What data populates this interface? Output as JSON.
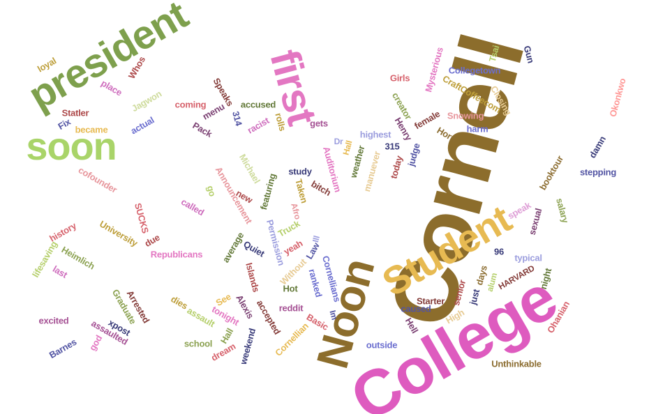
{
  "words": [
    {
      "text": "Cornell",
      "color": "#8c6d2c"
    },
    {
      "text": "College",
      "color": "#de5bbf"
    },
    {
      "text": "Noon",
      "color": "#8c6d2c"
    },
    {
      "text": "Student",
      "color": "#e7ba52"
    },
    {
      "text": "first",
      "color": "#e377c2"
    },
    {
      "text": "president",
      "color": "#7ea04d"
    },
    {
      "text": "soon",
      "color": "#a9d469"
    },
    {
      "text": "Collegetown",
      "color": "#6b6ecf"
    },
    {
      "text": "Girls",
      "color": "#d6616b"
    },
    {
      "text": "Mysterious",
      "color": "#e377c2"
    },
    {
      "text": "Tsai",
      "color": "#b5cf6b"
    },
    {
      "text": "Gun",
      "color": "#393b79"
    },
    {
      "text": "CraftCoffeecom",
      "color": "#bd9e39"
    },
    {
      "text": "Closing",
      "color": "#e7cb94"
    },
    {
      "text": "Okonkwo",
      "color": "#ff9896"
    },
    {
      "text": "Snowing",
      "color": "#e7969c"
    },
    {
      "text": "harm",
      "color": "#6b6ecf"
    },
    {
      "text": "female",
      "color": "#843c39"
    },
    {
      "text": "Horn",
      "color": "#8c6d31"
    },
    {
      "text": "creator",
      "color": "#8ca252"
    },
    {
      "text": "Henry",
      "color": "#7b4173"
    },
    {
      "text": "judge",
      "color": "#5254a3"
    },
    {
      "text": "315",
      "color": "#393b79"
    },
    {
      "text": "highest",
      "color": "#9c9ede"
    },
    {
      "text": "today",
      "color": "#ad494a"
    },
    {
      "text": "damn",
      "color": "#393b79"
    },
    {
      "text": "booktour",
      "color": "#8c6d31"
    },
    {
      "text": "stepping",
      "color": "#5254a3"
    },
    {
      "text": "weather",
      "color": "#637939"
    },
    {
      "text": "Hall",
      "color": "#e7ba52"
    },
    {
      "text": "manuever",
      "color": "#e7cb94"
    },
    {
      "text": "Dr",
      "color": "#9c9ede"
    },
    {
      "text": "Auditorium",
      "color": "#e377c2"
    },
    {
      "text": "study",
      "color": "#393b79"
    },
    {
      "text": "bitch",
      "color": "#843c39"
    },
    {
      "text": "Taken",
      "color": "#bd9e39"
    },
    {
      "text": "Afro",
      "color": "#e7969c"
    },
    {
      "text": "Truck",
      "color": "#b5cf6b"
    },
    {
      "text": "speak",
      "color": "#de9ed6"
    },
    {
      "text": "salary",
      "color": "#8ca252"
    },
    {
      "text": "sexual",
      "color": "#7b4173"
    },
    {
      "text": "night",
      "color": "#637939"
    },
    {
      "text": "typical",
      "color": "#9c9ede"
    },
    {
      "text": "96",
      "color": "#393b79"
    },
    {
      "text": "days",
      "color": "#8c6d31"
    },
    {
      "text": "HARVARD",
      "color": "#843c39"
    },
    {
      "text": "alum",
      "color": "#b5cf6b"
    },
    {
      "text": "just",
      "color": "#393b79"
    },
    {
      "text": "senior",
      "color": "#ad494a"
    },
    {
      "text": "High",
      "color": "#e7cb94"
    },
    {
      "text": "Starter",
      "color": "#843c39"
    },
    {
      "text": "caused",
      "color": "#5254a3"
    },
    {
      "text": "Hell",
      "color": "#7b4173"
    },
    {
      "text": "Ohanian",
      "color": "#d6616b"
    },
    {
      "text": "Unthinkable",
      "color": "#8c6d31"
    },
    {
      "text": "outside",
      "color": "#6b6ecf"
    },
    {
      "text": "loyal",
      "color": "#bd9e39"
    },
    {
      "text": "Whos",
      "color": "#ad494a"
    },
    {
      "text": "place",
      "color": "#ce6dbd"
    },
    {
      "text": "Jagwon",
      "color": "#cedb9c"
    },
    {
      "text": "coming",
      "color": "#d6616b"
    },
    {
      "text": "Speaks",
      "color": "#843c39"
    },
    {
      "text": "menu",
      "color": "#7b4173"
    },
    {
      "text": "accused",
      "color": "#637939"
    },
    {
      "text": "rolls",
      "color": "#bd9e39"
    },
    {
      "text": "314",
      "color": "#5254a3"
    },
    {
      "text": "racist",
      "color": "#ce6dbd"
    },
    {
      "text": "gets",
      "color": "#a55194"
    },
    {
      "text": "Statler",
      "color": "#ad494a"
    },
    {
      "text": "Fix",
      "color": "#5254a3"
    },
    {
      "text": "became",
      "color": "#e7ba52"
    },
    {
      "text": "actual",
      "color": "#6b6ecf"
    },
    {
      "text": "Pack",
      "color": "#7b4173"
    },
    {
      "text": "cofounder",
      "color": "#e7969c"
    },
    {
      "text": "Michael",
      "color": "#cedb9c"
    },
    {
      "text": "Announcement",
      "color": "#e7969c"
    },
    {
      "text": "go",
      "color": "#b5cf6b"
    },
    {
      "text": "new",
      "color": "#ad494a"
    },
    {
      "text": "featuring",
      "color": "#637939"
    },
    {
      "text": "called",
      "color": "#ce6dbd"
    },
    {
      "text": "SUCKS",
      "color": "#d6616b"
    },
    {
      "text": "history",
      "color": "#d6616b"
    },
    {
      "text": "University",
      "color": "#bd9e39"
    },
    {
      "text": "due",
      "color": "#ad494a"
    },
    {
      "text": "Republicans",
      "color": "#e377c2"
    },
    {
      "text": "Heimlich",
      "color": "#8ca252"
    },
    {
      "text": "lifesaving",
      "color": "#b5cf6b"
    },
    {
      "text": "last",
      "color": "#ce6dbd"
    },
    {
      "text": "average",
      "color": "#637939"
    },
    {
      "text": "Quiet",
      "color": "#393b79"
    },
    {
      "text": "Permission",
      "color": "#9c9ede"
    },
    {
      "text": "yeah",
      "color": "#d6616b"
    },
    {
      "text": "Islands",
      "color": "#ad494a"
    },
    {
      "text": "Ill",
      "color": "#9c9ede"
    },
    {
      "text": "Law",
      "color": "#5254a3"
    },
    {
      "text": "Without",
      "color": "#e7cb94"
    },
    {
      "text": "Hot",
      "color": "#637939"
    },
    {
      "text": "ranked",
      "color": "#6b6ecf"
    },
    {
      "text": "Cornellians",
      "color": "#6b6ecf"
    },
    {
      "text": "Im",
      "color": "#5254a3"
    },
    {
      "text": "Basic",
      "color": "#d6616b"
    },
    {
      "text": "reddit",
      "color": "#a55194"
    },
    {
      "text": "Cornellian",
      "color": "#e7ba52"
    },
    {
      "text": "Alexis",
      "color": "#7b4173"
    },
    {
      "text": "accepted",
      "color": "#843c39"
    },
    {
      "text": "See",
      "color": "#e7ba52"
    },
    {
      "text": "tonight",
      "color": "#e377c2"
    },
    {
      "text": "dies",
      "color": "#bd9e39"
    },
    {
      "text": "assault",
      "color": "#b5cf6b"
    },
    {
      "text": "Graduate",
      "color": "#8ca252"
    },
    {
      "text": "Arrested",
      "color": "#843c39"
    },
    {
      "text": "xpost",
      "color": "#393b79"
    },
    {
      "text": "assaulted",
      "color": "#a55194"
    },
    {
      "text": "excited",
      "color": "#a55194"
    },
    {
      "text": "god",
      "color": "#e377c2"
    },
    {
      "text": "Barnes",
      "color": "#5254a3"
    },
    {
      "text": "school",
      "color": "#8ca252"
    },
    {
      "text": "Hall",
      "color": "#8ca252"
    },
    {
      "text": "dream",
      "color": "#d6616b"
    },
    {
      "text": "weekend",
      "color": "#393b79"
    }
  ]
}
